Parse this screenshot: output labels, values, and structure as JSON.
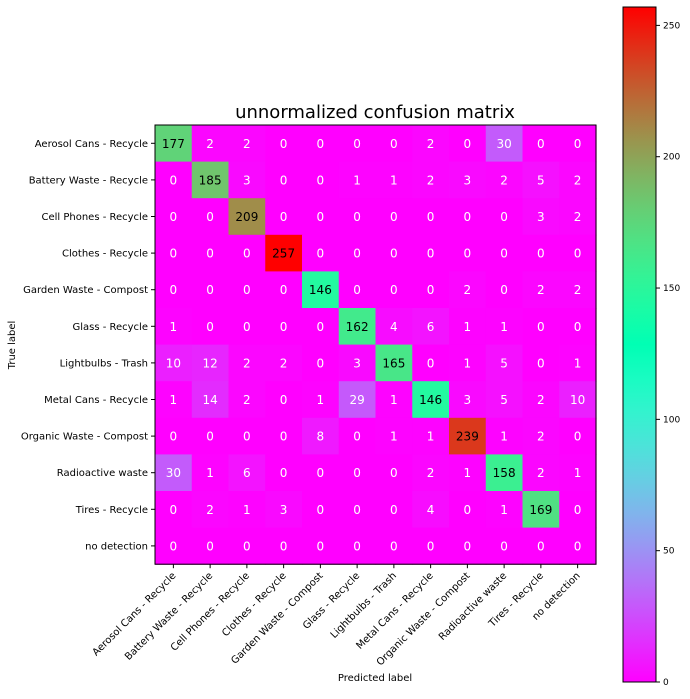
{
  "chart_data": {
    "type": "heatmap",
    "title": "unnormalized confusion matrix",
    "xlabel": "Predicted label",
    "ylabel": "True label",
    "colormap": "rainbow",
    "vmin": 0,
    "vmax": 257,
    "colorbar_ticks": [
      0,
      50,
      100,
      150,
      200,
      250
    ],
    "text_threshold": 128.5,
    "labels": [
      "Aerosol Cans - Recycle",
      "Battery Waste - Recycle",
      "Cell Phones - Recycle",
      "Clothes - Recycle",
      "Garden Waste - Compost",
      "Glass - Recycle",
      "Lightbulbs - Trash",
      "Metal Cans - Recycle",
      "Organic Waste - Compost",
      "Radioactive waste",
      "Tires - Recycle",
      "no detection"
    ],
    "matrix": [
      [
        177,
        2,
        2,
        0,
        0,
        0,
        0,
        2,
        0,
        30,
        0,
        0
      ],
      [
        0,
        185,
        3,
        0,
        0,
        1,
        1,
        2,
        3,
        2,
        5,
        2
      ],
      [
        0,
        0,
        209,
        0,
        0,
        0,
        0,
        0,
        0,
        0,
        3,
        2
      ],
      [
        0,
        0,
        0,
        257,
        0,
        0,
        0,
        0,
        0,
        0,
        0,
        0
      ],
      [
        0,
        0,
        0,
        0,
        146,
        0,
        0,
        0,
        2,
        0,
        2,
        2
      ],
      [
        1,
        0,
        0,
        0,
        0,
        162,
        4,
        6,
        1,
        1,
        0,
        0
      ],
      [
        10,
        12,
        2,
        2,
        0,
        3,
        165,
        0,
        1,
        5,
        0,
        1
      ],
      [
        1,
        14,
        2,
        0,
        1,
        29,
        1,
        146,
        3,
        5,
        2,
        10
      ],
      [
        0,
        0,
        0,
        0,
        8,
        0,
        1,
        1,
        239,
        1,
        2,
        0
      ],
      [
        30,
        1,
        6,
        0,
        0,
        0,
        0,
        2,
        1,
        158,
        2,
        1
      ],
      [
        0,
        2,
        1,
        3,
        0,
        0,
        0,
        4,
        0,
        1,
        169,
        0
      ],
      [
        0,
        0,
        0,
        0,
        0,
        0,
        0,
        0,
        0,
        0,
        0,
        0
      ]
    ]
  }
}
